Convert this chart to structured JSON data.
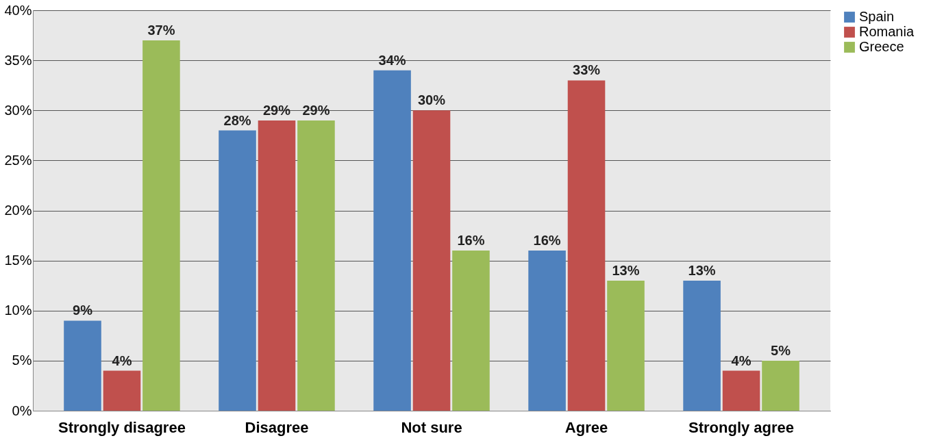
{
  "chart_data": {
    "type": "bar",
    "categories": [
      "Strongly disagree",
      "Disagree",
      "Not sure",
      "Agree",
      "Strongly agree"
    ],
    "series": [
      {
        "name": "Spain",
        "color": "#4f81bd",
        "values": [
          9,
          28,
          34,
          16,
          13
        ],
        "value_labels": [
          "9%",
          "28%",
          "34%",
          "16%",
          "13%"
        ]
      },
      {
        "name": "Romania",
        "color": "#c0504d",
        "values": [
          4,
          29,
          30,
          33,
          4
        ],
        "value_labels": [
          "4%",
          "29%",
          "30%",
          "33%",
          "4%"
        ]
      },
      {
        "name": "Greece",
        "color": "#9bbb59",
        "values": [
          37,
          29,
          16,
          13,
          5
        ],
        "value_labels": [
          "37%",
          "29%",
          "16%",
          "13%",
          "5%"
        ]
      }
    ],
    "ylim": [
      0,
      40
    ],
    "yticks": [
      {
        "value": 0,
        "label": "0%"
      },
      {
        "value": 5,
        "label": "5%"
      },
      {
        "value": 10,
        "label": "10%"
      },
      {
        "value": 15,
        "label": "15%"
      },
      {
        "value": 20,
        "label": "20%"
      },
      {
        "value": 25,
        "label": "25%"
      },
      {
        "value": 30,
        "label": "30%"
      },
      {
        "value": 35,
        "label": "35%"
      },
      {
        "value": 40,
        "label": "40%"
      }
    ],
    "grid": "y",
    "legend": "right"
  }
}
